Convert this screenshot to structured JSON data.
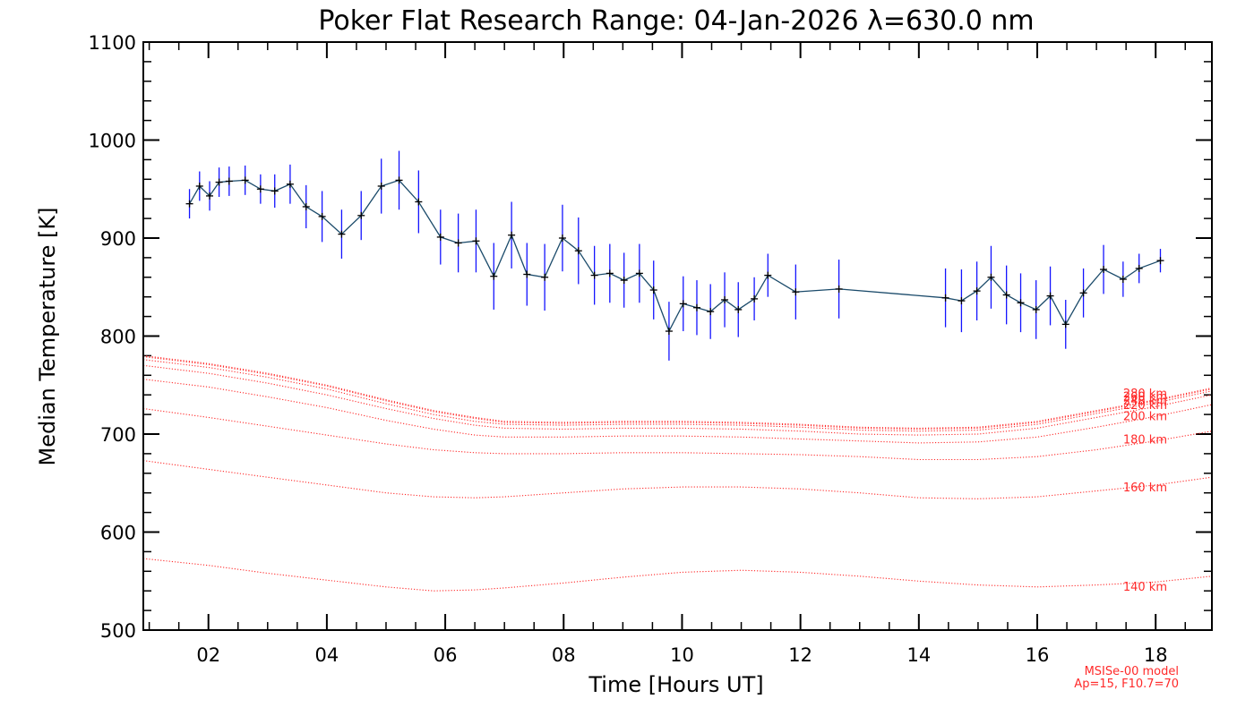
{
  "chart_data": {
    "type": "line",
    "title": "Poker Flat Research Range: 04-Jan-2026 λ=630.0 nm",
    "xlabel": "Time [Hours UT]",
    "ylabel": "Median Temperature [K]",
    "xlim": [
      0.9,
      18.95
    ],
    "ylim": [
      500,
      1100
    ],
    "xticks": [
      2,
      4,
      6,
      8,
      10,
      12,
      14,
      16,
      18
    ],
    "xtick_labels": [
      "02",
      "04",
      "06",
      "08",
      "10",
      "12",
      "14",
      "16",
      "18"
    ],
    "yticks": [
      500,
      600,
      700,
      800,
      900,
      1000,
      1100
    ],
    "ytick_labels": [
      "500",
      "600",
      "700",
      "800",
      "900",
      "1000",
      "1100"
    ],
    "colors": {
      "line": "#1a4a6a",
      "errorbar": "#1414ff",
      "marker": "#000000",
      "model": "#ff2a2a",
      "axis": "#000000"
    },
    "observed": {
      "name": "Median temperature",
      "x": [
        1.68,
        1.85,
        2.02,
        2.18,
        2.35,
        2.62,
        2.88,
        3.12,
        3.38,
        3.65,
        3.92,
        4.25,
        4.58,
        4.92,
        5.22,
        5.55,
        5.92,
        6.22,
        6.52,
        6.82,
        7.12,
        7.38,
        7.68,
        7.98,
        8.25,
        8.52,
        8.78,
        9.02,
        9.28,
        9.52,
        9.78,
        10.02,
        10.25,
        10.48,
        10.72,
        10.95,
        11.22,
        11.45,
        11.92,
        12.65,
        14.45,
        14.72,
        14.98,
        15.22,
        15.48,
        15.72,
        15.98,
        16.22,
        16.48,
        16.78,
        17.12,
        17.45,
        17.72,
        18.08
      ],
      "y": [
        935,
        953,
        943,
        957,
        958,
        959,
        950,
        948,
        955,
        932,
        922,
        904,
        923,
        953,
        959,
        937,
        901,
        895,
        897,
        861,
        903,
        863,
        860,
        900,
        887,
        862,
        864,
        857,
        864,
        847,
        805,
        833,
        829,
        825,
        837,
        827,
        838,
        862,
        845,
        848,
        839,
        836,
        846,
        860,
        842,
        834,
        827,
        841,
        812,
        844,
        868,
        858,
        869,
        877
      ],
      "err": [
        15,
        15,
        15,
        15,
        15,
        15,
        15,
        17,
        20,
        22,
        26,
        25,
        25,
        28,
        30,
        32,
        28,
        30,
        32,
        34,
        34,
        32,
        34,
        34,
        34,
        30,
        30,
        28,
        30,
        30,
        30,
        28,
        28,
        28,
        28,
        28,
        22,
        22,
        28,
        30,
        30,
        32,
        30,
        32,
        30,
        30,
        30,
        30,
        25,
        25,
        25,
        18,
        15,
        12
      ]
    },
    "model": {
      "name": "MSISe-00 model",
      "series": [
        {
          "name": "140 km",
          "label": "140 km",
          "x": [
            0.9,
            2,
            3,
            4,
            5,
            5.8,
            6.5,
            7,
            8,
            9,
            10,
            11,
            12,
            13,
            14,
            15,
            16,
            17,
            18,
            18.95
          ],
          "y": [
            573,
            566,
            558,
            551,
            544,
            540,
            541,
            543,
            548,
            554,
            559,
            561,
            559,
            555,
            550,
            546,
            544,
            546,
            549,
            555
          ]
        },
        {
          "name": "160 km",
          "label": "160 km",
          "x": [
            0.9,
            2,
            3,
            4,
            5,
            5.8,
            6.5,
            7,
            8,
            9,
            10,
            11,
            12,
            13,
            14,
            15,
            16,
            17,
            18,
            18.95
          ],
          "y": [
            673,
            664,
            656,
            648,
            640,
            636,
            635,
            636,
            640,
            644,
            646,
            646,
            644,
            640,
            635,
            634,
            636,
            642,
            648,
            656
          ]
        },
        {
          "name": "180 km",
          "label": "180 km",
          "x": [
            0.9,
            2,
            3,
            4,
            5,
            5.8,
            6.5,
            7,
            8,
            9,
            10,
            11,
            12,
            13,
            14,
            15,
            16,
            17,
            18,
            18.95
          ],
          "y": [
            726,
            717,
            708,
            699,
            690,
            684,
            681,
            680,
            680,
            681,
            681,
            680,
            679,
            677,
            674,
            674,
            677,
            684,
            693,
            703
          ]
        },
        {
          "name": "200 km",
          "label": "200 km",
          "x": [
            0.9,
            2,
            3,
            4,
            5,
            5.8,
            6.5,
            7,
            8,
            9,
            10,
            11,
            12,
            13,
            14,
            15,
            16,
            17,
            18,
            18.95
          ],
          "y": [
            756,
            748,
            738,
            727,
            714,
            705,
            699,
            697,
            697,
            698,
            698,
            697,
            695,
            693,
            691,
            692,
            697,
            707,
            718,
            730
          ]
        },
        {
          "name": "220 km",
          "label": "220 km",
          "x": [
            0.9,
            2,
            3,
            4,
            5,
            5.8,
            6.5,
            7,
            8,
            9,
            10,
            11,
            12,
            13,
            14,
            15,
            16,
            17,
            18,
            18.95
          ],
          "y": [
            770,
            762,
            752,
            740,
            726,
            716,
            709,
            706,
            705,
            706,
            706,
            705,
            703,
            700,
            699,
            700,
            706,
            717,
            728,
            740
          ]
        },
        {
          "name": "240 km",
          "label": "240 km",
          "x": [
            0.9,
            2,
            3,
            4,
            5,
            5.8,
            6.5,
            7,
            8,
            9,
            10,
            11,
            12,
            13,
            14,
            15,
            16,
            17,
            18,
            18.95
          ],
          "y": [
            776,
            768,
            758,
            746,
            731,
            720,
            713,
            710,
            709,
            710,
            710,
            709,
            707,
            704,
            703,
            704,
            710,
            721,
            732,
            744
          ]
        },
        {
          "name": "260 km",
          "label": "260 km",
          "x": [
            0.9,
            2,
            3,
            4,
            5,
            5.8,
            6.5,
            7,
            8,
            9,
            10,
            11,
            12,
            13,
            14,
            15,
            16,
            17,
            18,
            18.95
          ],
          "y": [
            779,
            771,
            761,
            749,
            734,
            723,
            716,
            712,
            711,
            712,
            712,
            711,
            709,
            706,
            705,
            706,
            712,
            723,
            734,
            746
          ]
        },
        {
          "name": "280 km",
          "label": "280 km",
          "x": [
            0.9,
            2,
            3,
            4,
            5,
            5.8,
            6.5,
            7,
            8,
            9,
            10,
            11,
            12,
            13,
            14,
            15,
            16,
            17,
            18,
            18.95
          ],
          "y": [
            780,
            772,
            762,
            750,
            735,
            724,
            717,
            713,
            712,
            713,
            713,
            712,
            710,
            707,
            706,
            707,
            713,
            724,
            735,
            747
          ]
        }
      ],
      "label_x": 17.45,
      "label_y": [
        544,
        645,
        694,
        718,
        729,
        734,
        738,
        741
      ],
      "note_lines": [
        "MSISe-00 model",
        "Ap=15, F10.7=70"
      ]
    }
  }
}
